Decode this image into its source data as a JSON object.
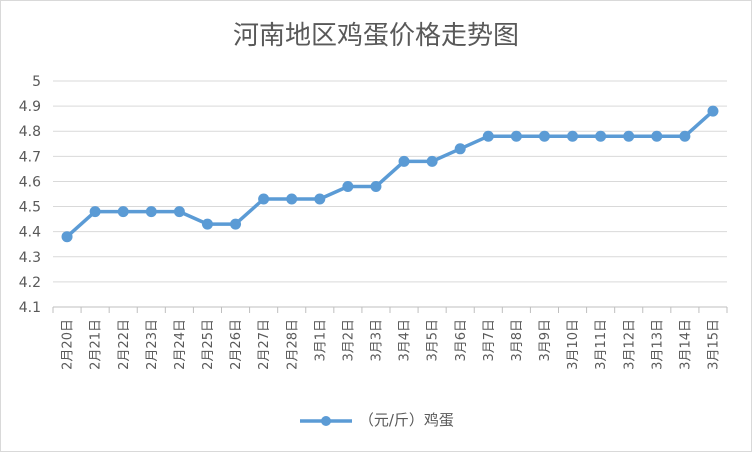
{
  "chart_data": {
    "type": "line",
    "title": "河南地区鸡蛋价格走势图",
    "categories": [
      "2月20日",
      "2月21日",
      "2月22日",
      "2月23日",
      "2月24日",
      "2月25日",
      "2月26日",
      "2月27日",
      "2月28日",
      "3月1日",
      "3月2日",
      "3月3日",
      "3月4日",
      "3月5日",
      "3月6日",
      "3月7日",
      "3月8日",
      "3月9日",
      "3月10日",
      "3月11日",
      "3月12日",
      "3月13日",
      "3月14日",
      "3月15日"
    ],
    "series": [
      {
        "name": "（元/斤）鸡蛋",
        "values": [
          4.38,
          4.48,
          4.48,
          4.48,
          4.48,
          4.43,
          4.43,
          4.53,
          4.53,
          4.53,
          4.58,
          4.58,
          4.68,
          4.68,
          4.73,
          4.78,
          4.78,
          4.78,
          4.78,
          4.78,
          4.78,
          4.78,
          4.78,
          4.88
        ],
        "color": "#5b9bd5"
      }
    ],
    "ylim": [
      4.1,
      5.0
    ],
    "yticks": [
      "4.1",
      "4.2",
      "4.3",
      "4.4",
      "4.5",
      "4.6",
      "4.7",
      "4.8",
      "4.9",
      "5"
    ],
    "grid": true,
    "legend_position": "bottom",
    "xlabel": "",
    "ylabel": ""
  }
}
